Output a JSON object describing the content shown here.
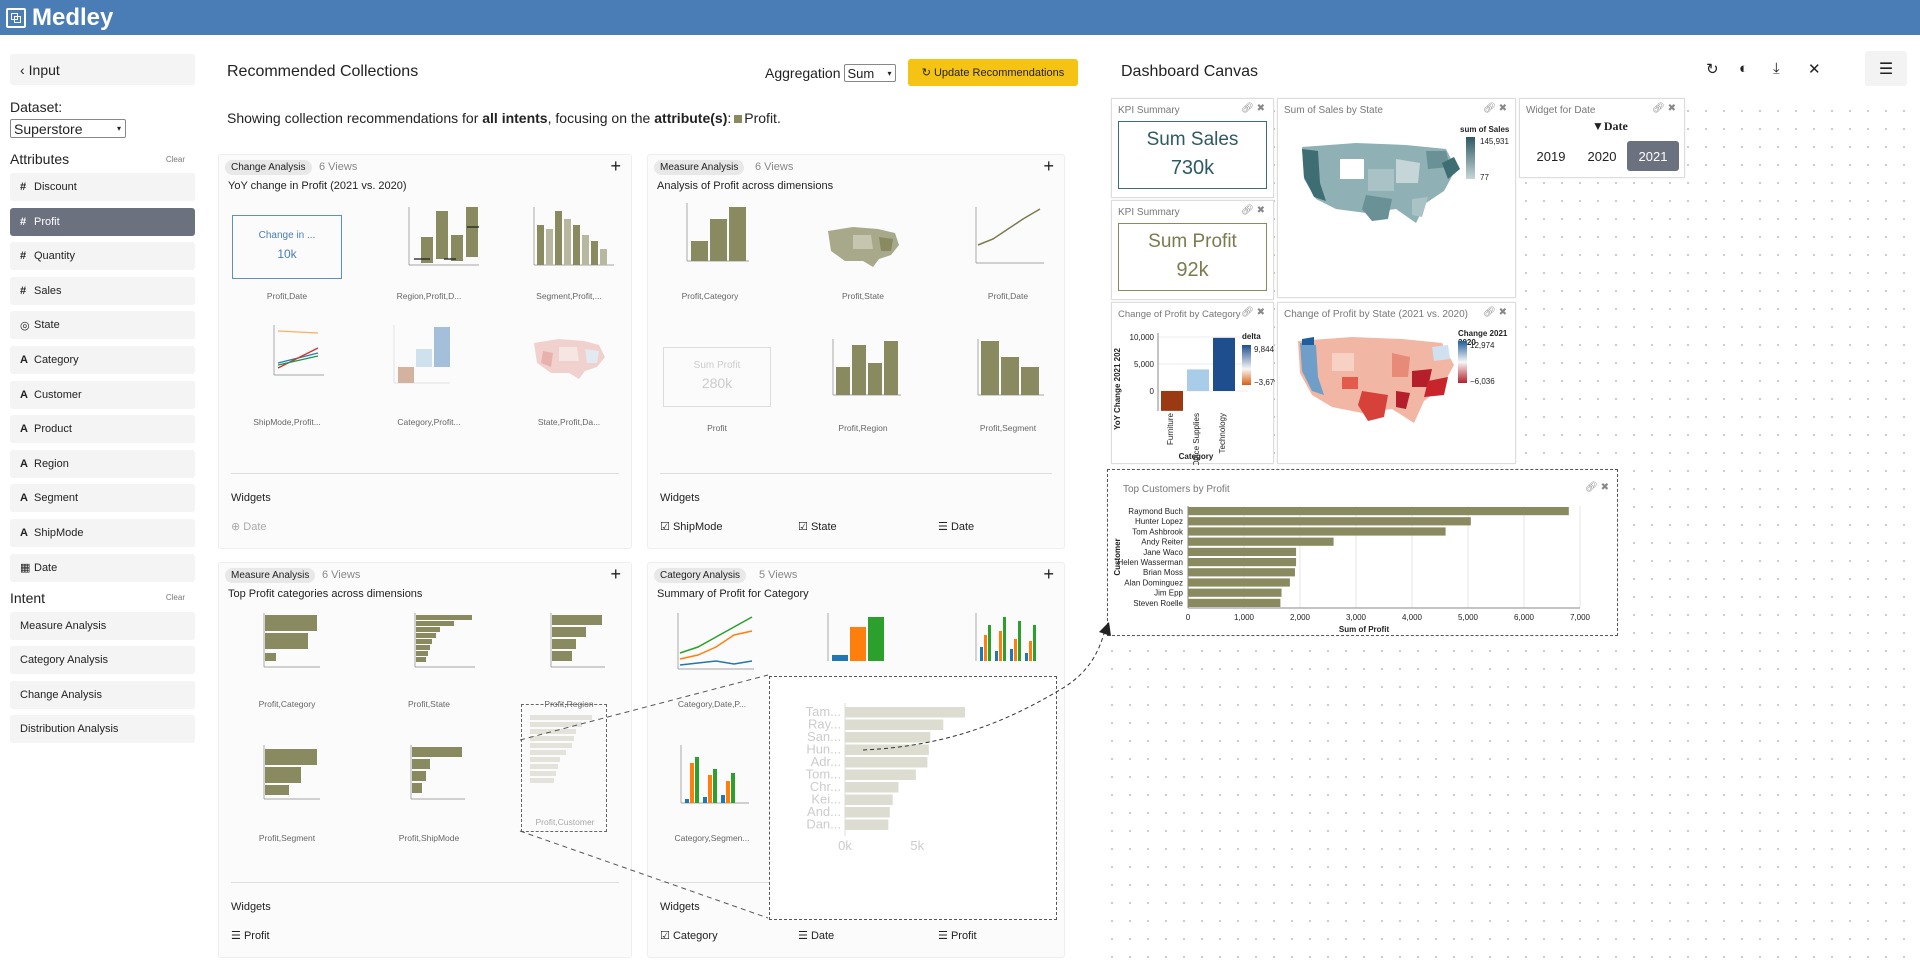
{
  "app": {
    "title": "Medley"
  },
  "sidebar": {
    "back_label": "Input",
    "dataset_label": "Dataset:",
    "dataset_value": "Superstore",
    "attributes_label": "Attributes",
    "clear_label": "Clear",
    "attributes": [
      {
        "icon": "#",
        "label": "Discount",
        "active": false
      },
      {
        "icon": "#",
        "label": "Profit",
        "active": true
      },
      {
        "icon": "#",
        "label": "Quantity",
        "active": false
      },
      {
        "icon": "#",
        "label": "Sales",
        "active": false
      },
      {
        "icon": "globe",
        "label": "State",
        "active": false
      },
      {
        "icon": "A",
        "label": "Category",
        "active": false
      },
      {
        "icon": "A",
        "label": "Customer",
        "active": false
      },
      {
        "icon": "A",
        "label": "Product",
        "active": false
      },
      {
        "icon": "A",
        "label": "Region",
        "active": false
      },
      {
        "icon": "A",
        "label": "Segment",
        "active": false
      },
      {
        "icon": "A",
        "label": "ShipMode",
        "active": false
      },
      {
        "icon": "calendar",
        "label": "Date",
        "active": false
      }
    ],
    "intent_label": "Intent",
    "intents": [
      "Measure Analysis",
      "Category Analysis",
      "Change Analysis",
      "Distribution Analysis"
    ]
  },
  "recommendations": {
    "title": "Recommended Collections",
    "aggregation_label": "Aggregation",
    "aggregation_value": "Sum",
    "update_button": "Update Recommendations",
    "showing_prefix": "Showing collection recommendations for ",
    "showing_bold1": "all intents",
    "showing_mid": ", focusing on the ",
    "showing_bold2": "attribute(s)",
    "showing_suffix": ":",
    "showing_attr": "Profit.",
    "widgets_label": "Widgets",
    "cards": [
      {
        "tag": "Change Analysis",
        "views": "6 Views",
        "subtitle": "YoY change in Profit (2021 vs. 2020)",
        "cells": [
          "Profit,Date",
          "Region,Profit,D...",
          "Segment,Profit,...",
          "ShipMode,Profit...",
          "Category,Profit...",
          "State,Profit,Da..."
        ],
        "kpi_title": "Change in ...",
        "kpi_value": "10k",
        "widgets": [
          {
            "label": "Date",
            "icon": "plus-circle",
            "enabled": false
          }
        ]
      },
      {
        "tag": "Measure Analysis",
        "views": "6 Views",
        "subtitle": "Analysis of Profit across dimensions",
        "cells": [
          "Profit,Category",
          "Profit,State",
          "Profit,Date",
          "Profit",
          "Profit,Region",
          "Profit,Segment"
        ],
        "kpi_title": "Sum Profit",
        "kpi_value": "280k",
        "widgets": [
          {
            "label": "ShipMode",
            "icon": "checkbox"
          },
          {
            "label": "State",
            "icon": "checkbox"
          },
          {
            "label": "Date",
            "icon": "list"
          }
        ]
      },
      {
        "tag": "Measure Analysis",
        "views": "6 Views",
        "subtitle": "Top Profit categories across dimensions",
        "cells": [
          "Profit,Category",
          "Profit,State",
          "Profit,Region",
          "Profit,Segment",
          "Profit,ShipMode",
          "Profit,Customer"
        ],
        "widgets": [
          {
            "label": "Profit",
            "icon": "list"
          }
        ]
      },
      {
        "tag": "Category Analysis",
        "views": "5 Views",
        "subtitle": "Summary of Profit for Category",
        "cells": [
          "Category,Date,P...",
          "",
          "",
          "Category,Segmen..."
        ],
        "widgets": [
          {
            "label": "Category",
            "icon": "checkbox"
          },
          {
            "label": "Date",
            "icon": "list"
          },
          {
            "label": "Profit",
            "icon": "list"
          }
        ]
      }
    ],
    "zoom_preview": {
      "names": [
        "Tam...",
        "Ray...",
        "San...",
        "Hun...",
        "Adr...",
        "Tom...",
        "Chr...",
        "Kei...",
        "And...",
        "Dan..."
      ],
      "values": [
        8300,
        6800,
        5900,
        5800,
        5700,
        4900,
        3700,
        3300,
        3100,
        3000
      ],
      "ticks": [
        "0k",
        "5k"
      ]
    }
  },
  "dashboard": {
    "title": "Dashboard Canvas",
    "kpi1": {
      "title": "KPI Summary",
      "name": "Sum Sales",
      "value": "730k"
    },
    "kpi2": {
      "title": "KPI Summary",
      "name": "Sum Profit",
      "value": "92k"
    },
    "map_sales": {
      "title": "Sum of Sales by State",
      "legend_title": "sum of Sales",
      "max": "145,931",
      "min": "77"
    },
    "date_widget": {
      "title": "Widget for Date",
      "header": "Date",
      "years": [
        "2019",
        "2020",
        "2021"
      ],
      "selected": "2021"
    },
    "change_cat": {
      "title": "Change of Profit by Category",
      "ylabel": "YoY Change 2021 202",
      "xlabel": "Category",
      "legend_title": "delta",
      "legend_max": "9,844",
      "legend_min": "−3,679",
      "yticks": [
        "10,000",
        "5,000",
        "0"
      ]
    },
    "map_change": {
      "title": "Change of Profit by State (2021 vs. 2020)",
      "legend_title": "Change 2021 2020",
      "max": "12,974",
      "min": "−6,036"
    },
    "top_customers": {
      "title": "Top Customers by Profit",
      "ylabel": "Customer",
      "xlabel": "Sum of Profit",
      "xticks": [
        "0",
        "1,000",
        "2,000",
        "3,000",
        "4,000",
        "5,000",
        "6,000",
        "7,000"
      ]
    },
    "colors": {
      "olive": "#8a8a60",
      "teal": "#3e6d73",
      "accent": "#f5c313",
      "selected": "#6c7180"
    }
  },
  "chart_data": [
    {
      "type": "bar",
      "title": "Change of Profit by Category",
      "ylabel": "YoY Change 2021 202",
      "xlabel": "Category",
      "categories": [
        "Furniture",
        "Office Supplies",
        "Technology"
      ],
      "values": [
        -3679,
        4000,
        9844
      ],
      "ylim": [
        -3679,
        10000
      ]
    },
    {
      "type": "bar",
      "title": "Top Customers by Profit",
      "xlabel": "Sum of Profit",
      "ylabel": "Customer",
      "categories": [
        "Raymond Buch",
        "Hunter Lopez",
        "Tom Ashbrook",
        "Andy Reiter",
        "Jane Waco",
        "Helen Wasserman",
        "Brian Moss",
        "Alan Dominguez",
        "Jim Epp",
        "Steven Roelle"
      ],
      "values": [
        6800,
        5050,
        4600,
        2600,
        1930,
        1930,
        1910,
        1820,
        1670,
        1650
      ],
      "xlim": [
        0,
        7000
      ]
    }
  ]
}
